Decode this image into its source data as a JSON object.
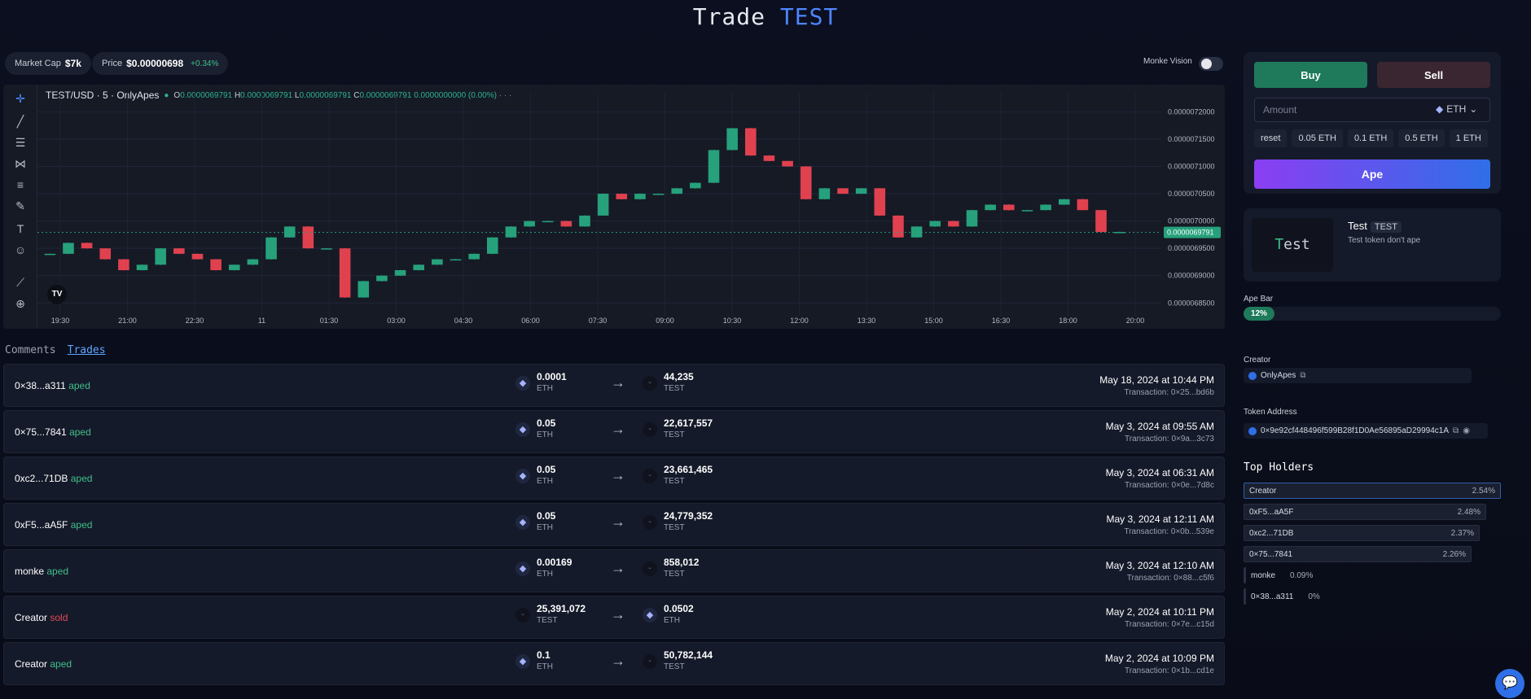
{
  "header": {
    "title_prefix": "Trade",
    "title_token": "TEST"
  },
  "stats": {
    "market_cap_label": "Market Cap",
    "market_cap_value": "$7k",
    "price_label": "Price",
    "price_value": "$0.00000698",
    "price_change": "+0.34%",
    "monke_label": "Monke Vision"
  },
  "chart": {
    "symbol": "TEST/USD · 5 · OnlyApes",
    "ohlc": {
      "o": "0.0000069791",
      "h": "0.0000069791",
      "l": "0.0000069791",
      "c": "0.0000069791",
      "chg": "0.0000000000 (0.00%)"
    },
    "last_price": "0.0000069791",
    "tv_logo": "TV"
  },
  "chart_data": {
    "type": "candlestick",
    "title": "TEST/USD · 5 · OnlyApes",
    "y_ticks": [
      "0.0000072000",
      "0.0000071500",
      "0.0000071000",
      "0.0000070500",
      "0.0000070000",
      "0.0000069500",
      "0.0000069000",
      "0.0000068500"
    ],
    "x_ticks": [
      "19:30",
      "21:00",
      "22:30",
      "11",
      "01:30",
      "03:00",
      "04:30",
      "06:00",
      "07:30",
      "09:00",
      "10:30",
      "12:00",
      "13:30",
      "15:00",
      "16:30",
      "18:00",
      "20:00"
    ],
    "ylim": [
      6.84e-06,
      7.22e-06
    ],
    "close_series": [
      6.94e-06,
      6.96e-06,
      6.95e-06,
      6.93e-06,
      6.91e-06,
      6.92e-06,
      6.95e-06,
      6.94e-06,
      6.93e-06,
      6.91e-06,
      6.92e-06,
      6.93e-06,
      6.97e-06,
      6.99e-06,
      6.95e-06,
      6.95e-06,
      6.86e-06,
      6.89e-06,
      6.9e-06,
      6.91e-06,
      6.92e-06,
      6.93e-06,
      6.93e-06,
      6.94e-06,
      6.97e-06,
      6.99e-06,
      7e-06,
      7e-06,
      6.99e-06,
      7.01e-06,
      7.05e-06,
      7.04e-06,
      7.05e-06,
      7.05e-06,
      7.06e-06,
      7.07e-06,
      7.13e-06,
      7.17e-06,
      7.12e-06,
      7.11e-06,
      7.1e-06,
      7.04e-06,
      7.06e-06,
      7.05e-06,
      7.06e-06,
      7.01e-06,
      6.97e-06,
      6.99e-06,
      7e-06,
      6.99e-06,
      7.02e-06,
      7.03e-06,
      7.02e-06,
      7.02e-06,
      7.03e-06,
      7.04e-06,
      7.02e-06,
      6.98e-06,
      6.98e-06
    ]
  },
  "tabs": [
    {
      "label": "Comments",
      "active": false
    },
    {
      "label": "Trades",
      "active": true
    }
  ],
  "trades": [
    {
      "user": "0×38...a311",
      "action": "aped",
      "in_amt": "0.0001",
      "in_sym": "ETH",
      "out_amt": "44,235",
      "out_sym": "TEST",
      "date": "May 18, 2024 at 10:44 PM",
      "tx": "Transaction: 0×25...bd6b"
    },
    {
      "user": "0×75...7841",
      "action": "aped",
      "in_amt": "0.05",
      "in_sym": "ETH",
      "out_amt": "22,617,557",
      "out_sym": "TEST",
      "date": "May 3, 2024 at 09:55 AM",
      "tx": "Transaction: 0×9a...3c73"
    },
    {
      "user": "0xc2...71DB",
      "action": "aped",
      "in_amt": "0.05",
      "in_sym": "ETH",
      "out_amt": "23,661,465",
      "out_sym": "TEST",
      "date": "May 3, 2024 at 06:31 AM",
      "tx": "Transaction: 0×0e...7d8c"
    },
    {
      "user": "0xF5...aA5F",
      "action": "aped",
      "in_amt": "0.05",
      "in_sym": "ETH",
      "out_amt": "24,779,352",
      "out_sym": "TEST",
      "date": "May 3, 2024 at 12:11 AM",
      "tx": "Transaction: 0×0b...539e"
    },
    {
      "user": "monke",
      "action": "aped",
      "in_amt": "0.00169",
      "in_sym": "ETH",
      "out_amt": "858,012",
      "out_sym": "TEST",
      "date": "May 3, 2024 at 12:10 AM",
      "tx": "Transaction: 0×88...c5f6"
    },
    {
      "user": "Creator",
      "action": "sold",
      "in_amt": "25,391,072",
      "in_sym": "TEST",
      "out_amt": "0.0502",
      "out_sym": "ETH",
      "date": "May 2, 2024 at 10:11 PM",
      "tx": "Transaction: 0×7e...c15d"
    },
    {
      "user": "Creator",
      "action": "aped",
      "in_amt": "0.1",
      "in_sym": "ETH",
      "out_amt": "50,782,144",
      "out_sym": "TEST",
      "date": "May 2, 2024 at 10:09 PM",
      "tx": "Transaction: 0×1b...cd1e"
    }
  ],
  "trade_panel": {
    "buy_label": "Buy",
    "sell_label": "Sell",
    "amount_placeholder": "Amount",
    "currency": "ETH",
    "quick": [
      "reset",
      "0.05 ETH",
      "0.1 ETH",
      "0.5 ETH",
      "1 ETH"
    ],
    "ape_label": "Ape"
  },
  "token": {
    "logo_text": "Test",
    "name": "Test",
    "symbol": "TEST",
    "description": "Test token don't ape"
  },
  "ape_bar": {
    "label": "Ape Bar",
    "percent": 12,
    "percent_label": "12%"
  },
  "creator": {
    "label": "Creator",
    "name": "OnlyApes"
  },
  "token_address": {
    "label": "Token Address",
    "value": "0×9e92cf448496f599B28f1D0Ae56895aD29994c1A"
  },
  "holders": {
    "title": "Top Holders",
    "items": [
      {
        "name": "Creator",
        "pct": "2.54%"
      },
      {
        "name": "0xF5...aA5F",
        "pct": "2.48%"
      },
      {
        "name": "0xc2...71DB",
        "pct": "2.37%"
      },
      {
        "name": "0×75...7841",
        "pct": "2.26%"
      },
      {
        "name": "monke",
        "pct": "0.09%"
      },
      {
        "name": "0×38...a311",
        "pct": "0%"
      }
    ]
  },
  "colors": {
    "up": "#26a17b",
    "down": "#e0414f",
    "accent": "#4f86ff",
    "buy": "#1e7a5a"
  }
}
